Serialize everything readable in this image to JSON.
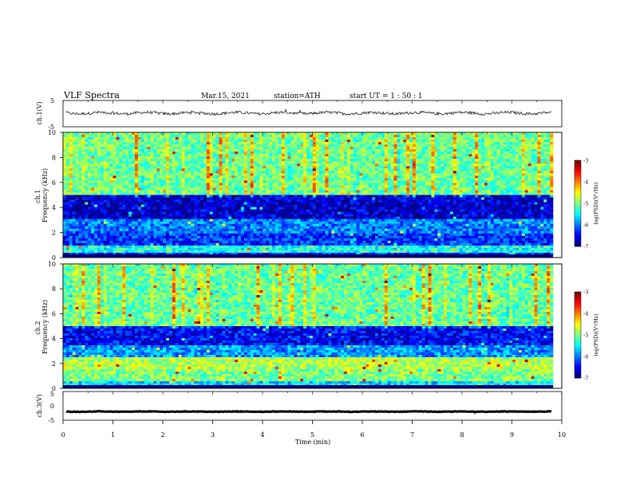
{
  "header": {
    "title": "VLF  Spectra",
    "date": "Mar.15, 2021",
    "station": "station=ATH",
    "start_time": "start  UT  =    1  : 50 : 1"
  },
  "chart_data": [
    {
      "type": "line",
      "panel": "ch1-voltage",
      "ylabel": "ch.1(V)",
      "ylim": [
        -5,
        5
      ],
      "y_ticks": [
        "5",
        "-5"
      ],
      "xlim": [
        0,
        10
      ],
      "x_extent_min": 9.8,
      "baseline_v": 0.2,
      "noise_v": 0.9
    },
    {
      "type": "heatmap",
      "panel": "ch1-spectrogram",
      "ylabel": "ch.1\nFrequency (kHz)",
      "ylim": [
        0,
        10
      ],
      "y_ticks": [
        "0",
        "2",
        "4",
        "6",
        "8",
        "10"
      ],
      "xlim": [
        0,
        10
      ],
      "colorbar": {
        "label": "log(PSD)(V²/Hz)",
        "range": [
          -7,
          -3
        ],
        "ticks": [
          "-3",
          "-4",
          "-5",
          "-6",
          "-7"
        ]
      },
      "bands_khz": [
        {
          "from": 0,
          "to": 0.3,
          "level": -6.4
        },
        {
          "from": 0.3,
          "to": 1.0,
          "level": -5.4
        },
        {
          "from": 1.0,
          "to": 2.0,
          "level": -6.3
        },
        {
          "from": 2.0,
          "to": 3.0,
          "level": -6.0
        },
        {
          "from": 3.0,
          "to": 5.0,
          "level": -6.7
        },
        {
          "from": 5.0,
          "to": 10.0,
          "level": -5.1
        }
      ]
    },
    {
      "type": "heatmap",
      "panel": "ch2-spectrogram",
      "ylabel": "ch.2\nFrequency (kHz)",
      "ylim": [
        0,
        10
      ],
      "y_ticks": [
        "0",
        "2",
        "4",
        "6",
        "8",
        "10"
      ],
      "xlim": [
        0,
        10
      ],
      "colorbar": {
        "label": "log(PSD)(V²/Hz)",
        "range": [
          -7,
          -3
        ],
        "ticks": [
          "-3",
          "-4",
          "-5",
          "-6",
          "-7"
        ]
      },
      "bands_khz": [
        {
          "from": 0,
          "to": 0.5,
          "level": -5.6
        },
        {
          "from": 0.5,
          "to": 1.5,
          "level": -5.0
        },
        {
          "from": 1.5,
          "to": 2.5,
          "level": -4.8
        },
        {
          "from": 2.5,
          "to": 3.5,
          "level": -5.9
        },
        {
          "from": 3.5,
          "to": 5.0,
          "level": -6.5
        },
        {
          "from": 5.0,
          "to": 10.0,
          "level": -5.1
        }
      ]
    },
    {
      "type": "line",
      "panel": "ch3-voltage",
      "ylabel": "ch.3(V)",
      "ylim": [
        -5,
        5
      ],
      "y_ticks": [
        "5",
        "0",
        "-5"
      ],
      "xlim": [
        0,
        10
      ],
      "x_extent_min": 9.8,
      "baseline_v": -2.0,
      "noise_v": 0.15,
      "xlabel": "Time  (min)",
      "x_ticks": [
        "0",
        "1",
        "2",
        "3",
        "4",
        "5",
        "6",
        "7",
        "8",
        "9",
        "10"
      ]
    }
  ]
}
